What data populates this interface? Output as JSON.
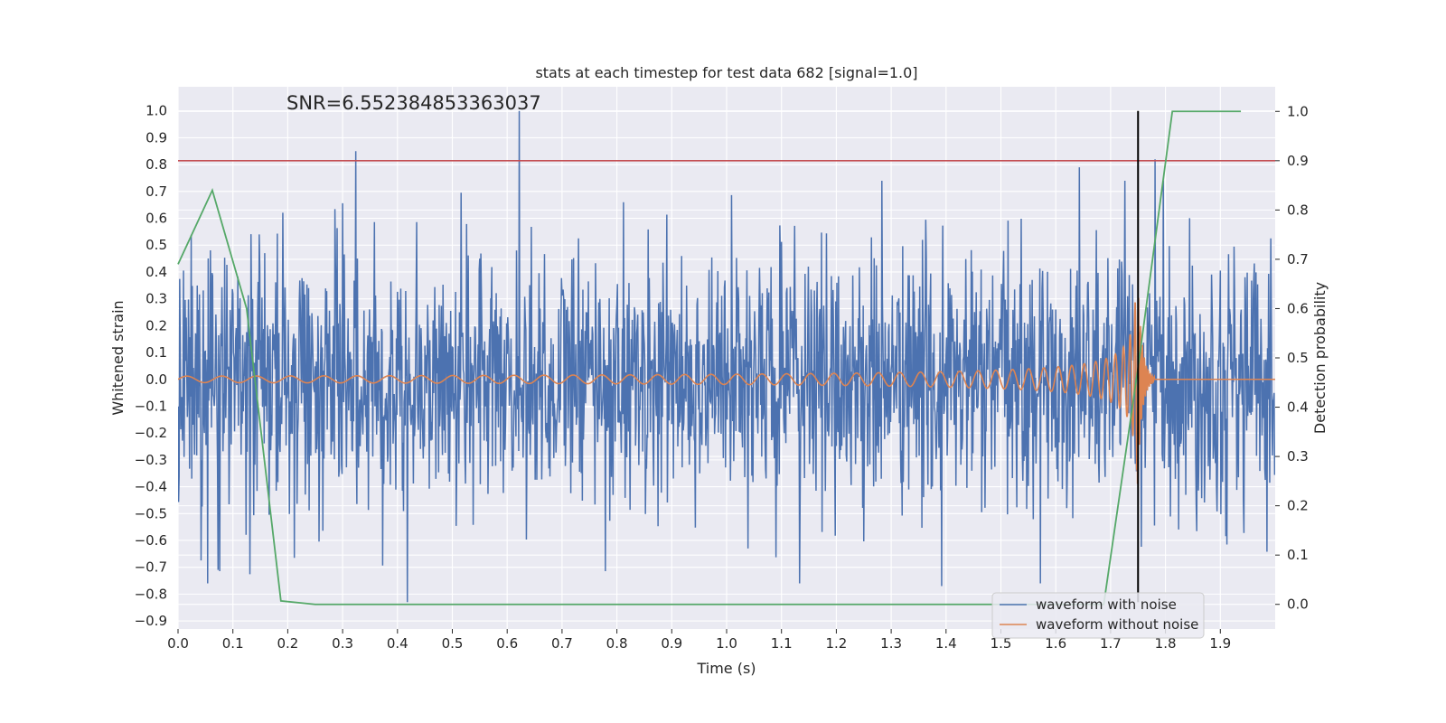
{
  "chart_data": {
    "type": "line",
    "title": "stats at each timestep for test data 682 [signal=1.0]",
    "xlabel": "Time (s)",
    "ylabel": "Whitened strain",
    "y2label": "Detection probability",
    "annotation": "SNR=6.552384853363037",
    "xlim": [
      0.0,
      2.0
    ],
    "ylim": [
      -0.93,
      1.09
    ],
    "y2lim": [
      -0.05,
      1.05
    ],
    "xticks": [
      "0.0",
      "0.1",
      "0.2",
      "0.3",
      "0.4",
      "0.5",
      "0.6",
      "0.7",
      "0.8",
      "0.9",
      "1.0",
      "1.1",
      "1.2",
      "1.3",
      "1.4",
      "1.5",
      "1.6",
      "1.7",
      "1.8",
      "1.9"
    ],
    "yticks": [
      "−0.9",
      "−0.8",
      "−0.7",
      "−0.6",
      "−0.5",
      "−0.4",
      "−0.3",
      "−0.2",
      "−0.1",
      "0.0",
      "0.1",
      "0.2",
      "0.3",
      "0.4",
      "0.5",
      "0.6",
      "0.7",
      "0.8",
      "0.9",
      "1.0"
    ],
    "y2ticks": [
      "0.0",
      "0.1",
      "0.2",
      "0.3",
      "0.4",
      "0.5",
      "0.6",
      "0.7",
      "0.8",
      "0.9",
      "1.0"
    ],
    "grid": true,
    "legend_position": "bottom-right",
    "colors": {
      "background": "#eaeaf2",
      "grid": "#ffffff",
      "noise": "#4c72b0",
      "clean": "#dd8452",
      "probability": "#55a868",
      "threshold": "#c44e52",
      "merger": "#000000"
    },
    "series": [
      {
        "name": "waveform with noise",
        "axis": "left",
        "description_stats": {
          "n_points": 2000,
          "peak_max": 1.0,
          "peak_min": -0.83
        },
        "notable_peaks": [
          {
            "x": 0.324,
            "y": 0.85
          },
          {
            "x": 0.622,
            "y": 1.0
          },
          {
            "x": 0.418,
            "y": -0.83
          },
          {
            "x": 0.073,
            "y": -0.71
          },
          {
            "x": 1.392,
            "y": -0.77
          },
          {
            "x": 1.643,
            "y": 0.79
          },
          {
            "x": 1.781,
            "y": 0.82
          }
        ]
      },
      {
        "name": "waveform without noise",
        "axis": "left",
        "chirp": {
          "start": 0.0,
          "merger": 1.75,
          "end_amplitude": 0.35
        }
      },
      {
        "name": "",
        "axis": "right",
        "x": [
          0.0,
          0.0625,
          0.125,
          0.1875,
          0.25,
          0.3125,
          0.375,
          0.4375,
          0.5,
          0.5625,
          0.625,
          0.6875,
          0.75,
          0.8125,
          0.875,
          0.9375,
          1.0,
          1.0625,
          1.125,
          1.1875,
          1.25,
          1.3125,
          1.375,
          1.4375,
          1.5,
          1.5625,
          1.625,
          1.6875,
          1.75,
          1.8125,
          1.875,
          1.9375
        ],
        "y": [
          0.69,
          0.84,
          0.6,
          0.007,
          0.0,
          0.0,
          0.0,
          0.0,
          0.0,
          0.0,
          0.0,
          0.0,
          0.0,
          0.0,
          0.0,
          0.0,
          0.0,
          0.0,
          0.0,
          0.0,
          0.0,
          0.0,
          0.0,
          0.0,
          0.0,
          0.0,
          0.0,
          0.0,
          0.48,
          1.0,
          1.0,
          1.0
        ]
      }
    ],
    "threshold_line": {
      "axis": "right",
      "y": 0.9
    },
    "merger_line": {
      "x": 1.75,
      "y_range": [
        -0.83,
        1.0
      ]
    }
  }
}
